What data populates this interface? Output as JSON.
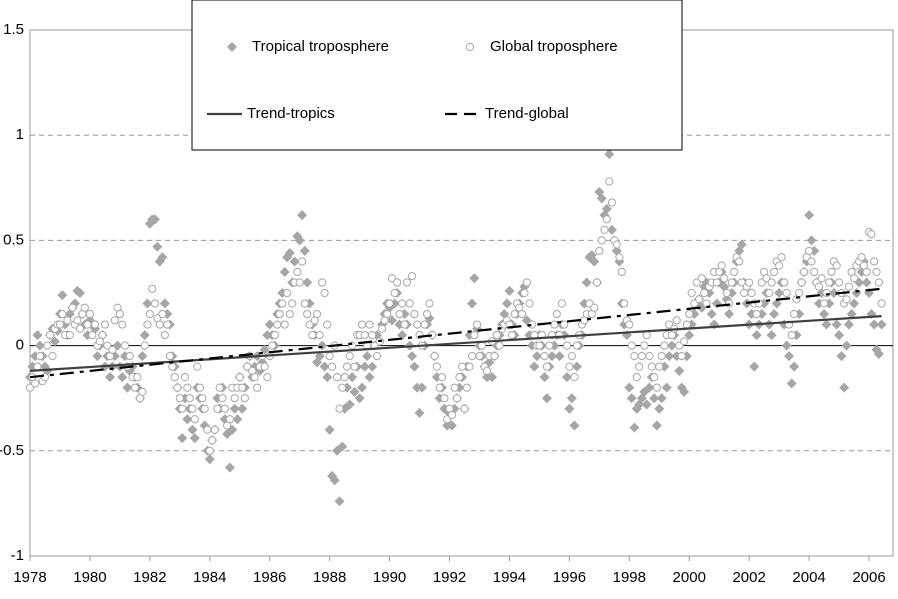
{
  "chart_data": {
    "type": "scatter",
    "xlim": [
      1978,
      2006.8
    ],
    "xticks": [
      1978,
      1980,
      1982,
      1984,
      1986,
      1988,
      1990,
      1992,
      1994,
      1996,
      1998,
      2000,
      2002,
      2004,
      2006
    ],
    "ylim": [
      -1,
      1.5
    ],
    "yticks": [
      -1,
      -0.5,
      0,
      0.5,
      1,
      1.5
    ],
    "grid": true,
    "legend": "top",
    "x": [
      1978,
      1978.08,
      1978.17,
      1978.25,
      1978.33,
      1978.42,
      1978.5,
      1978.58,
      1978.67,
      1978.75,
      1978.83,
      1978.92,
      1979,
      1979.08,
      1979.17,
      1979.25,
      1979.33,
      1979.42,
      1979.5,
      1979.58,
      1979.67,
      1979.75,
      1979.83,
      1979.92,
      1980,
      1980.08,
      1980.17,
      1980.25,
      1980.33,
      1980.42,
      1980.5,
      1980.58,
      1980.67,
      1980.75,
      1980.83,
      1980.92,
      1981,
      1981.08,
      1981.17,
      1981.25,
      1981.33,
      1981.42,
      1981.5,
      1981.58,
      1981.67,
      1981.75,
      1981.83,
      1981.92,
      1982,
      1982.08,
      1982.17,
      1982.25,
      1982.33,
      1982.42,
      1982.5,
      1982.58,
      1982.67,
      1982.75,
      1982.83,
      1982.92,
      1983,
      1983.08,
      1983.17,
      1983.25,
      1983.33,
      1983.42,
      1983.5,
      1983.58,
      1983.67,
      1983.75,
      1983.83,
      1983.92,
      1984,
      1984.08,
      1984.17,
      1984.25,
      1984.33,
      1984.42,
      1984.5,
      1984.58,
      1984.67,
      1984.75,
      1984.83,
      1984.92,
      1985,
      1985.08,
      1985.17,
      1985.25,
      1985.33,
      1985.42,
      1985.5,
      1985.58,
      1985.67,
      1985.75,
      1985.83,
      1985.92,
      1986,
      1986.08,
      1986.17,
      1986.25,
      1986.33,
      1986.42,
      1986.5,
      1986.58,
      1986.67,
      1986.75,
      1986.83,
      1986.92,
      1987,
      1987.08,
      1987.17,
      1987.25,
      1987.33,
      1987.42,
      1987.5,
      1987.58,
      1987.67,
      1987.75,
      1987.83,
      1987.92,
      1988,
      1988.08,
      1988.17,
      1988.25,
      1988.33,
      1988.42,
      1988.5,
      1988.58,
      1988.67,
      1988.75,
      1988.83,
      1988.92,
      1989,
      1989.08,
      1989.17,
      1989.25,
      1989.33,
      1989.42,
      1989.5,
      1989.58,
      1989.67,
      1989.75,
      1989.83,
      1989.92,
      1990,
      1990.08,
      1990.17,
      1990.25,
      1990.33,
      1990.42,
      1990.5,
      1990.58,
      1990.67,
      1990.75,
      1990.83,
      1990.92,
      1991,
      1991.08,
      1991.17,
      1991.25,
      1991.33,
      1991.42,
      1991.5,
      1991.58,
      1991.67,
      1991.75,
      1991.83,
      1991.92,
      1992,
      1992.08,
      1992.17,
      1992.25,
      1992.33,
      1992.42,
      1992.5,
      1992.58,
      1992.67,
      1992.75,
      1992.83,
      1992.92,
      1993,
      1993.08,
      1993.17,
      1993.25,
      1993.33,
      1993.42,
      1993.5,
      1993.58,
      1993.67,
      1993.75,
      1993.83,
      1993.92,
      1994,
      1994.08,
      1994.17,
      1994.25,
      1994.33,
      1994.42,
      1994.5,
      1994.58,
      1994.67,
      1994.75,
      1994.83,
      1994.92,
      1995,
      1995.08,
      1995.17,
      1995.25,
      1995.33,
      1995.42,
      1995.5,
      1995.58,
      1995.67,
      1995.75,
      1995.83,
      1995.92,
      1996,
      1996.08,
      1996.17,
      1996.25,
      1996.33,
      1996.42,
      1996.5,
      1996.58,
      1996.67,
      1996.75,
      1996.83,
      1996.92,
      1997,
      1997.08,
      1997.17,
      1997.25,
      1997.33,
      1997.42,
      1997.5,
      1997.58,
      1997.67,
      1997.75,
      1997.83,
      1997.92,
      1998,
      1998.08,
      1998.17,
      1998.25,
      1998.33,
      1998.42,
      1998.5,
      1998.58,
      1998.67,
      1998.75,
      1998.83,
      1998.92,
      1999,
      1999.08,
      1999.17,
      1999.25,
      1999.33,
      1999.42,
      1999.5,
      1999.58,
      1999.67,
      1999.75,
      1999.83,
      1999.92,
      2000,
      2000.08,
      2000.17,
      2000.25,
      2000.33,
      2000.42,
      2000.5,
      2000.58,
      2000.67,
      2000.75,
      2000.83,
      2000.92,
      2001,
      2001.08,
      2001.17,
      2001.25,
      2001.33,
      2001.42,
      2001.5,
      2001.58,
      2001.67,
      2001.75,
      2001.83,
      2001.92,
      2002,
      2002.08,
      2002.17,
      2002.25,
      2002.33,
      2002.42,
      2002.5,
      2002.58,
      2002.67,
      2002.75,
      2002.83,
      2002.92,
      2003,
      2003.08,
      2003.17,
      2003.25,
      2003.33,
      2003.42,
      2003.5,
      2003.58,
      2003.67,
      2003.75,
      2003.83,
      2003.92,
      2004,
      2004.08,
      2004.17,
      2004.25,
      2004.33,
      2004.42,
      2004.5,
      2004.58,
      2004.67,
      2004.75,
      2004.83,
      2004.92,
      2005,
      2005.08,
      2005.17,
      2005.25,
      2005.33,
      2005.42,
      2005.5,
      2005.58,
      2005.67,
      2005.75,
      2005.83,
      2005.92,
      2006,
      2006.08,
      2006.17,
      2006.25,
      2006.33,
      2006.42
    ],
    "series": [
      {
        "name": "Tropical troposphere",
        "marker": "diamond",
        "color": "#a6a6a6",
        "values": [
          -0.15,
          -0.1,
          -0.05,
          0.05,
          0.0,
          -0.05,
          -0.1,
          -0.12,
          0.05,
          0.08,
          0.02,
          0.07,
          0.15,
          0.24,
          0.1,
          0.05,
          0.15,
          0.18,
          0.2,
          0.26,
          0.25,
          0.15,
          0.1,
          0.05,
          0.12,
          0.1,
          0.08,
          -0.05,
          0.0,
          0.05,
          -0.1,
          -0.05,
          -0.15,
          -0.1,
          -0.05,
          0.0,
          -0.1,
          -0.15,
          -0.05,
          -0.2,
          -0.12,
          -0.1,
          -0.15,
          -0.2,
          -0.25,
          -0.05,
          0.05,
          0.2,
          0.58,
          0.6,
          0.6,
          0.47,
          0.4,
          0.42,
          0.2,
          0.15,
          0.1,
          -0.05,
          -0.1,
          -0.2,
          -0.3,
          -0.44,
          -0.25,
          -0.35,
          -0.3,
          -0.4,
          -0.44,
          -0.2,
          -0.25,
          -0.3,
          -0.38,
          -0.5,
          -0.54,
          -0.45,
          -0.4,
          -0.25,
          -0.3,
          -0.2,
          -0.35,
          -0.42,
          -0.58,
          -0.4,
          -0.3,
          -0.35,
          -0.15,
          -0.3,
          -0.2,
          -0.1,
          -0.05,
          -0.15,
          -0.1,
          -0.05,
          -0.12,
          -0.08,
          -0.02,
          0.05,
          0.1,
          0.05,
          0.0,
          0.15,
          0.2,
          0.25,
          0.35,
          0.42,
          0.44,
          0.3,
          0.4,
          0.52,
          0.5,
          0.62,
          0.45,
          0.3,
          0.2,
          0.1,
          0.05,
          -0.08,
          -0.05,
          0.0,
          -0.1,
          -0.15,
          -0.4,
          -0.62,
          -0.64,
          -0.5,
          -0.74,
          -0.48,
          -0.3,
          -0.2,
          -0.28,
          -0.15,
          -0.22,
          -0.1,
          -0.25,
          -0.2,
          -0.1,
          -0.05,
          -0.15,
          -0.1,
          0.0,
          0.05,
          0.02,
          0.1,
          0.15,
          0.2,
          0.18,
          0.12,
          0.2,
          0.25,
          0.1,
          0.05,
          0.15,
          0.1,
          0.0,
          -0.05,
          -0.1,
          -0.2,
          -0.32,
          -0.2,
          0.0,
          0.1,
          0.13,
          0.05,
          -0.05,
          -0.15,
          -0.25,
          -0.2,
          -0.3,
          -0.38,
          -0.32,
          -0.38,
          -0.3,
          -0.25,
          -0.2,
          -0.15,
          -0.3,
          -0.1,
          0.05,
          0.2,
          0.32,
          0.08,
          0.0,
          -0.05,
          -0.1,
          -0.15,
          -0.08,
          -0.15,
          -0.05,
          0.0,
          0.05,
          0.1,
          0.15,
          0.2,
          0.26,
          0.1,
          0.05,
          0.15,
          0.2,
          0.25,
          0.28,
          0.12,
          0.05,
          0.0,
          -0.1,
          -0.05,
          0.05,
          0.0,
          -0.15,
          -0.25,
          -0.1,
          -0.05,
          0.0,
          0.05,
          -0.05,
          0.1,
          0.05,
          -0.15,
          -0.3,
          -0.25,
          -0.38,
          -0.1,
          0.0,
          0.05,
          0.2,
          0.3,
          0.42,
          0.43,
          0.4,
          0.3,
          0.73,
          0.7,
          0.62,
          0.65,
          0.91,
          0.55,
          0.5,
          0.45,
          0.4,
          0.2,
          0.1,
          0.05,
          -0.2,
          -0.25,
          -0.39,
          -0.3,
          -0.28,
          -0.25,
          -0.22,
          -0.28,
          -0.2,
          -0.15,
          -0.25,
          -0.38,
          -0.3,
          -0.25,
          -0.1,
          -0.2,
          -0.05,
          0.0,
          0.05,
          -0.05,
          -0.12,
          -0.2,
          -0.22,
          -0.05,
          0.05,
          0.1,
          0.15,
          0.2,
          0.22,
          0.18,
          0.28,
          0.3,
          0.25,
          0.15,
          0.1,
          0.2,
          0.3,
          0.35,
          0.28,
          0.22,
          0.15,
          0.25,
          0.3,
          0.4,
          0.45,
          0.48,
          0.3,
          0.2,
          0.1,
          0.15,
          -0.1,
          0.05,
          0.1,
          0.15,
          0.2,
          0.25,
          0.1,
          0.05,
          0.15,
          0.2,
          0.25,
          0.3,
          0.1,
          0.0,
          -0.05,
          -0.18,
          -0.1,
          0.05,
          0.15,
          0.3,
          0.35,
          0.4,
          0.62,
          0.5,
          0.45,
          0.3,
          0.2,
          0.25,
          0.15,
          0.1,
          0.2,
          0.3,
          0.25,
          0.1,
          0.05,
          -0.05,
          -0.2,
          0.0,
          0.1,
          0.15,
          0.2,
          0.25,
          0.3,
          0.35,
          0.4,
          0.3,
          0.25,
          0.15,
          0.1,
          -0.02,
          -0.04,
          0.1
        ]
      },
      {
        "name": "Global troposphere",
        "marker": "circle",
        "color": "#a6a6a6",
        "values": [
          -0.2,
          -0.15,
          -0.18,
          -0.1,
          -0.05,
          -0.17,
          -0.15,
          0.0,
          0.05,
          -0.05,
          0.08,
          0.1,
          0.1,
          0.15,
          0.05,
          0.12,
          0.05,
          0.18,
          0.1,
          0.12,
          0.08,
          0.15,
          0.18,
          0.1,
          0.15,
          0.05,
          0.1,
          0.0,
          0.02,
          0.05,
          0.1,
          0.0,
          -0.05,
          -0.02,
          0.12,
          0.18,
          0.15,
          0.1,
          0.0,
          -0.1,
          -0.05,
          -0.15,
          -0.2,
          -0.15,
          -0.25,
          -0.22,
          0.0,
          0.1,
          0.15,
          0.27,
          0.2,
          0.13,
          0.1,
          0.15,
          0.05,
          0.1,
          -0.05,
          -0.1,
          -0.15,
          -0.2,
          -0.25,
          -0.3,
          -0.15,
          -0.2,
          -0.25,
          -0.3,
          -0.35,
          -0.1,
          -0.2,
          -0.25,
          -0.3,
          -0.4,
          -0.5,
          -0.45,
          -0.4,
          -0.3,
          -0.2,
          -0.25,
          -0.3,
          -0.38,
          -0.35,
          -0.2,
          -0.25,
          -0.2,
          -0.15,
          -0.2,
          -0.25,
          -0.1,
          -0.05,
          -0.12,
          -0.15,
          -0.2,
          -0.1,
          -0.05,
          -0.1,
          -0.15,
          -0.05,
          0.0,
          0.05,
          0.1,
          0.15,
          0.2,
          0.1,
          0.25,
          0.15,
          0.2,
          0.3,
          0.35,
          0.3,
          0.4,
          0.2,
          0.15,
          0.1,
          0.05,
          0.12,
          0.15,
          0.05,
          0.3,
          0.25,
          0.1,
          -0.05,
          -0.1,
          0.0,
          -0.15,
          -0.3,
          -0.2,
          -0.15,
          -0.1,
          -0.05,
          0.0,
          -0.1,
          0.05,
          0.05,
          0.1,
          0.05,
          0.0,
          0.1,
          0.05,
          0.0,
          -0.05,
          0.02,
          0.08,
          0.12,
          0.15,
          0.2,
          0.32,
          0.25,
          0.3,
          0.15,
          0.2,
          0.1,
          0.3,
          0.2,
          0.33,
          0.15,
          0.1,
          0.05,
          0.0,
          0.1,
          0.15,
          0.2,
          0.05,
          -0.05,
          -0.1,
          -0.2,
          -0.15,
          -0.25,
          -0.35,
          -0.3,
          -0.33,
          -0.2,
          -0.25,
          -0.15,
          -0.1,
          -0.3,
          -0.2,
          -0.1,
          -0.05,
          0.05,
          0.1,
          -0.05,
          0.0,
          -0.1,
          -0.12,
          -0.05,
          0.02,
          -0.05,
          0.05,
          0.0,
          0.08,
          0.1,
          0.12,
          0.1,
          0.05,
          0.15,
          0.2,
          0.18,
          0.15,
          0.25,
          0.3,
          0.2,
          0.1,
          0.05,
          0.0,
          0.0,
          0.05,
          -0.05,
          -0.1,
          0.0,
          0.05,
          0.1,
          0.15,
          0.05,
          0.2,
          0.1,
          0.0,
          -0.1,
          -0.05,
          -0.15,
          0.0,
          0.05,
          0.1,
          0.12,
          0.15,
          0.2,
          0.15,
          0.18,
          0.3,
          0.45,
          0.5,
          0.55,
          0.6,
          0.78,
          0.68,
          0.5,
          0.48,
          0.42,
          0.35,
          0.2,
          0.12,
          0.1,
          0.0,
          -0.05,
          -0.15,
          -0.1,
          -0.05,
          0.0,
          0.05,
          -0.05,
          -0.1,
          -0.15,
          -0.2,
          -0.1,
          -0.05,
          0.0,
          0.05,
          0.1,
          0.05,
          0.08,
          0.12,
          0.0,
          -0.05,
          0.02,
          0.1,
          0.15,
          0.25,
          0.2,
          0.3,
          0.22,
          0.32,
          0.25,
          0.2,
          0.28,
          0.3,
          0.35,
          0.3,
          0.35,
          0.38,
          0.32,
          0.25,
          0.2,
          0.3,
          0.35,
          0.42,
          0.4,
          0.3,
          0.25,
          0.28,
          0.3,
          0.25,
          0.2,
          0.15,
          0.2,
          0.3,
          0.35,
          0.32,
          0.25,
          0.3,
          0.35,
          0.4,
          0.38,
          0.42,
          0.3,
          0.25,
          0.1,
          0.05,
          0.15,
          0.22,
          0.25,
          0.3,
          0.35,
          0.42,
          0.45,
          0.4,
          0.35,
          0.3,
          0.28,
          0.32,
          0.2,
          0.25,
          0.3,
          0.35,
          0.4,
          0.38,
          0.3,
          0.25,
          0.2,
          0.22,
          0.28,
          0.35,
          0.32,
          0.38,
          0.4,
          0.42,
          0.38,
          0.35,
          0.54,
          0.53,
          0.4,
          0.35,
          0.3,
          0.2
        ]
      },
      {
        "name": "Trend-tropics",
        "marker": "line",
        "dash": "solid",
        "color": "#404040",
        "x": [
          1978,
          2006.42
        ],
        "values": [
          -0.12,
          0.14
        ]
      },
      {
        "name": "Trend-global",
        "marker": "line",
        "dash": "dashed",
        "color": "#000000",
        "x": [
          1978,
          2006.42
        ],
        "values": [
          -0.15,
          0.27
        ]
      }
    ]
  }
}
